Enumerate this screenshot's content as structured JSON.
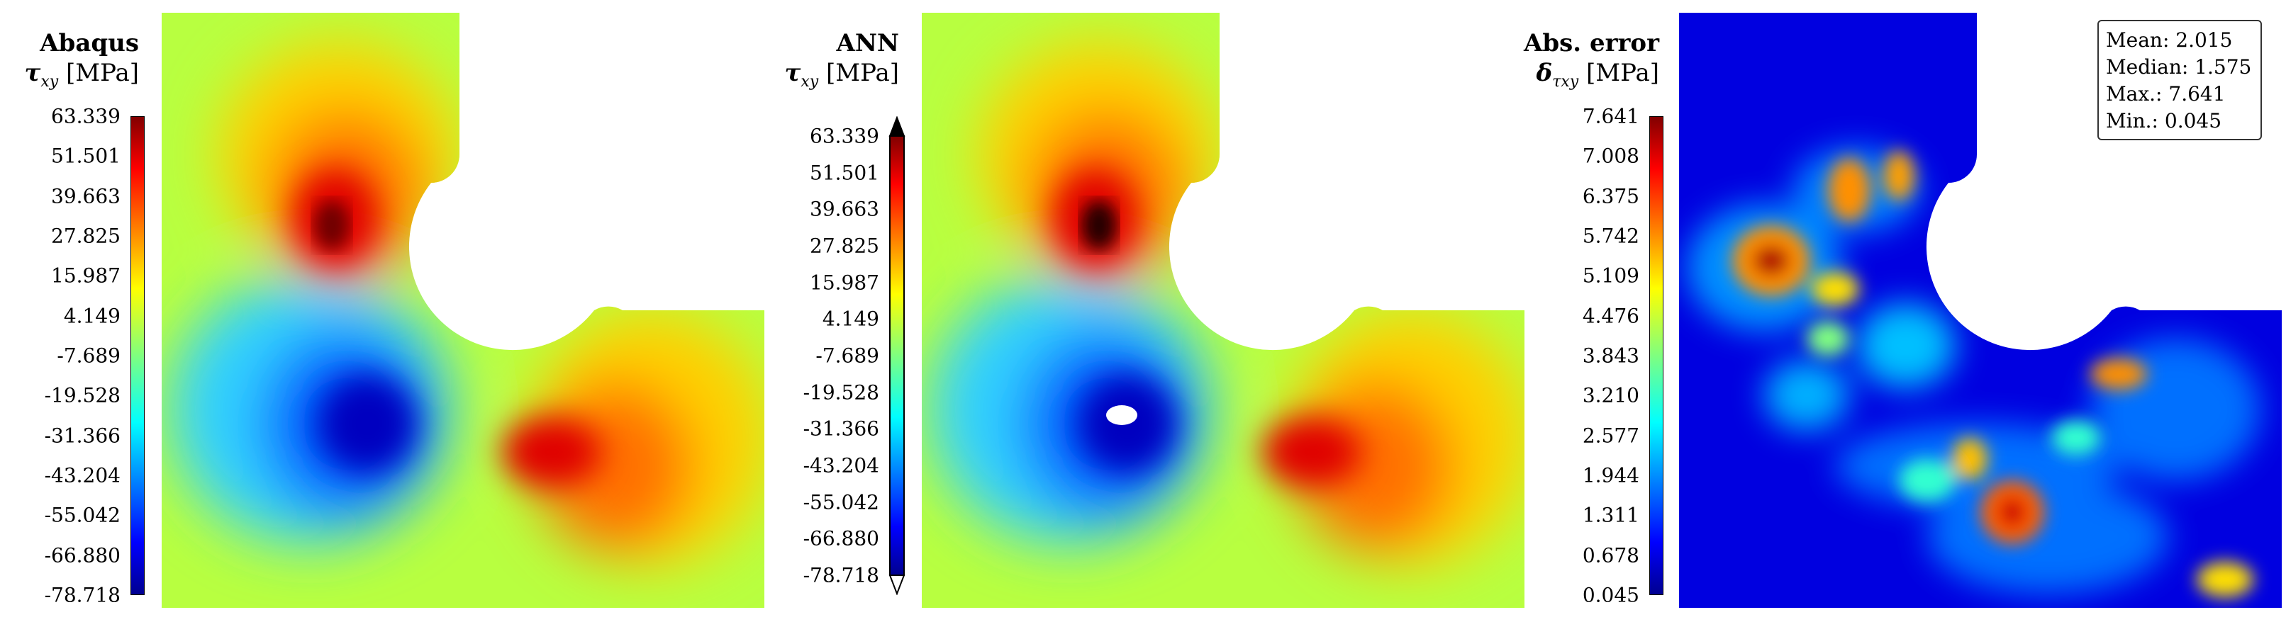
{
  "chart_data": [
    {
      "type": "heatmap",
      "panel": "Abaqus",
      "title": "Abaqus",
      "colorbar_label": "τxy [MPa]",
      "colorbar_ticks": [
        "63.339",
        "51.501",
        "39.663",
        "27.825",
        "15.987",
        "4.149",
        "-7.689",
        "-19.528",
        "-31.366",
        "-43.204",
        "-55.042",
        "-66.880",
        "-78.718"
      ],
      "range": [
        -78.718,
        63.339
      ],
      "colormap": "jet"
    },
    {
      "type": "heatmap",
      "panel": "ANN",
      "title": "ANN",
      "colorbar_label": "τxy [MPa]",
      "colorbar_ticks": [
        "63.339",
        "51.501",
        "39.663",
        "27.825",
        "15.987",
        "4.149",
        "-7.689",
        "-19.528",
        "-31.366",
        "-43.204",
        "-55.042",
        "-66.880",
        "-78.718"
      ],
      "range": [
        -78.718,
        63.339
      ],
      "colormap": "jet",
      "extend": "both"
    },
    {
      "type": "heatmap",
      "panel": "Abs. error",
      "title": "Abs. error",
      "colorbar_label": "δτxy [MPa]",
      "colorbar_ticks": [
        "7.641",
        "7.008",
        "6.375",
        "5.742",
        "5.109",
        "4.476",
        "3.843",
        "3.210",
        "2.577",
        "1.944",
        "1.311",
        "0.678",
        "0.045"
      ],
      "range": [
        0.045,
        7.641
      ],
      "colormap": "jet",
      "stats": {
        "mean": "Mean: 2.015",
        "median": "Median: 1.575",
        "max": "Max.: 7.641",
        "min": "Min.: 0.045"
      }
    }
  ],
  "panels": [
    {
      "title": "Abaqus",
      "symbol": "τ",
      "sub": "xy",
      "unit": " [MPa]"
    },
    {
      "title": "ANN",
      "symbol": "τ",
      "sub": "xy",
      "unit": " [MPa]"
    },
    {
      "title": "Abs. error",
      "symbol": "δ",
      "sub": "τxy",
      "unit": " [MPa]"
    }
  ],
  "stats_box": {
    "mean": "Mean: 2.015",
    "median": "Median: 1.575",
    "max": "Max.: 7.641",
    "min": "Min.: 0.045"
  }
}
